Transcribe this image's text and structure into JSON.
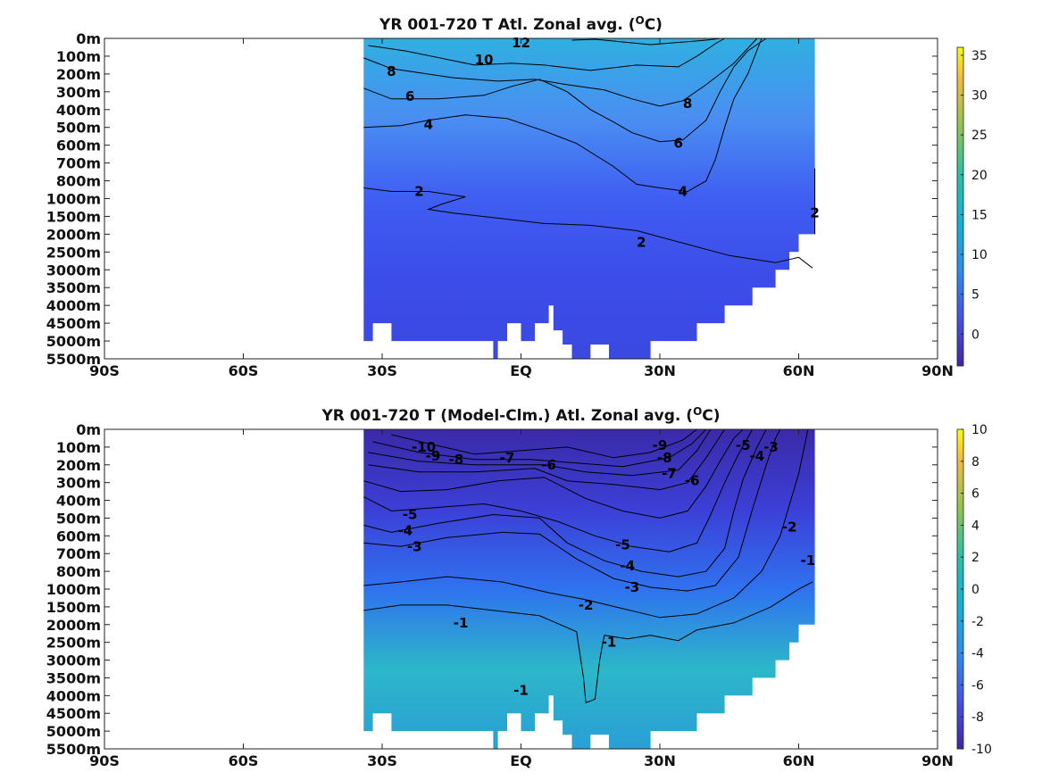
{
  "chart_data": [
    {
      "type": "heatmap",
      "title": "YR 001-720 T Atl. Zonal avg. (",
      "title_unit_sup": "O",
      "title_unit_tail": "C)",
      "x_ticks": [
        "90S",
        "60S",
        "30S",
        "EQ",
        "30N",
        "60N",
        "90N"
      ],
      "y_ticks": [
        "0m",
        "100m",
        "200m",
        "300m",
        "400m",
        "500m",
        "600m",
        "700m",
        "800m",
        "1000m",
        "1500m",
        "2000m",
        "2500m",
        "3000m",
        "3500m",
        "4000m",
        "4500m",
        "5000m",
        "5500m"
      ],
      "xlim": [
        -90,
        90
      ],
      "colorbar": {
        "range": [
          -4,
          36
        ],
        "ticks": [
          0,
          5,
          10,
          15,
          20,
          25,
          30,
          35
        ]
      },
      "colormap": "parula",
      "contours": [
        {
          "level": 12,
          "points": [
            [
              11,
              0.1
            ],
            [
              16,
              0.05
            ],
            [
              20,
              0.15
            ],
            [
              28,
              0.35
            ],
            [
              40,
              0.1
            ],
            [
              43,
              0
            ]
          ]
        },
        {
          "level": 10,
          "points": [
            [
              -33,
              0.4
            ],
            [
              -25,
              0.7
            ],
            [
              -10,
              1.5
            ],
            [
              -2,
              1.4
            ],
            [
              5,
              1.5
            ],
            [
              15,
              1.8
            ],
            [
              25,
              1.5
            ],
            [
              34,
              1.6
            ],
            [
              38,
              1
            ],
            [
              42,
              0.3
            ],
            [
              44,
              0
            ]
          ]
        },
        {
          "level": 8,
          "points": [
            [
              -34,
              1.1
            ],
            [
              -28,
              1.7
            ],
            [
              -15,
              2.2
            ],
            [
              -5,
              2.4
            ],
            [
              3,
              2.3
            ],
            [
              10,
              2.6
            ],
            [
              18,
              2.9
            ],
            [
              24,
              3.4
            ],
            [
              30,
              3.8
            ],
            [
              35,
              3.5
            ],
            [
              40,
              2.6
            ],
            [
              46,
              1.4
            ],
            [
              51,
              0
            ]
          ]
        },
        {
          "level": 6,
          "points": [
            [
              -34,
              2.8
            ],
            [
              -28,
              3.4
            ],
            [
              -18,
              3.4
            ],
            [
              -8,
              3.2
            ],
            [
              -2,
              2.7
            ],
            [
              4,
              2.3
            ],
            [
              10,
              3.0
            ],
            [
              15,
              4.0
            ],
            [
              20,
              4.7
            ],
            [
              24,
              5.3
            ],
            [
              30,
              5.8
            ],
            [
              35,
              5.7
            ],
            [
              40,
              4.6
            ],
            [
              43,
              3.0
            ],
            [
              46,
              1.6
            ],
            [
              49,
              0.7
            ],
            [
              53,
              0
            ]
          ]
        },
        {
          "level": 4,
          "points": [
            [
              -34,
              5.0
            ],
            [
              -26,
              4.9
            ],
            [
              -20,
              4.6
            ],
            [
              -12,
              4.3
            ],
            [
              -3,
              4.5
            ],
            [
              5,
              5.2
            ],
            [
              12,
              5.9
            ],
            [
              20,
              7.2
            ],
            [
              25,
              8.2
            ],
            [
              30,
              8.4
            ],
            [
              36,
              8.6
            ],
            [
              40,
              8.0
            ],
            [
              42,
              6.8
            ],
            [
              44,
              5.0
            ],
            [
              46,
              3.4
            ],
            [
              49,
              2.0
            ],
            [
              52,
              0
            ]
          ]
        },
        {
          "level": 2,
          "points": [
            [
              -34,
              8.4
            ],
            [
              -28,
              8.6
            ],
            [
              -20,
              8.6
            ],
            [
              -12,
              8.9
            ],
            [
              -17,
              9.3
            ],
            [
              -20,
              9.6
            ],
            [
              -15,
              9.8
            ],
            [
              -5,
              10.1
            ],
            [
              5,
              10.4
            ],
            [
              15,
              10.5
            ],
            [
              25,
              10.8
            ],
            [
              35,
              11.5
            ],
            [
              45,
              12.2
            ],
            [
              55,
              12.6
            ],
            [
              60,
              12.3
            ],
            [
              63,
              12.9
            ]
          ]
        },
        {
          "level": 2,
          "points": [
            [
              63.5,
              7.3
            ],
            [
              63.5,
              11.0
            ]
          ]
        }
      ],
      "labels": [
        {
          "text": "12",
          "x": 0,
          "y": 0.25
        },
        {
          "text": "10",
          "x": -8,
          "y": 1.2
        },
        {
          "text": "8",
          "x": -28,
          "y": 1.85
        },
        {
          "text": "8",
          "x": 36,
          "y": 3.65
        },
        {
          "text": "6",
          "x": -24,
          "y": 3.25
        },
        {
          "text": "6",
          "x": 34,
          "y": 5.9
        },
        {
          "text": "4",
          "x": -20,
          "y": 4.85
        },
        {
          "text": "4",
          "x": 35,
          "y": 8.6
        },
        {
          "text": "2",
          "x": -22,
          "y": 8.6
        },
        {
          "text": "2",
          "x": 26,
          "y": 11.45
        },
        {
          "text": "2",
          "x": 63.5,
          "y": 9.8
        }
      ]
    },
    {
      "type": "heatmap",
      "title": "YR 001-720 T (Model-Clm.) Atl. Zonal avg. (",
      "title_unit_sup": "O",
      "title_unit_tail": "C)",
      "x_ticks": [
        "90S",
        "60S",
        "30S",
        "EQ",
        "30N",
        "60N",
        "90N"
      ],
      "y_ticks": [
        "0m",
        "100m",
        "200m",
        "300m",
        "400m",
        "500m",
        "600m",
        "700m",
        "800m",
        "1000m",
        "1500m",
        "2000m",
        "2500m",
        "3000m",
        "3500m",
        "4000m",
        "4500m",
        "5000m",
        "5500m"
      ],
      "xlim": [
        -90,
        90
      ],
      "colorbar": {
        "range": [
          -10,
          10
        ],
        "ticks": [
          -10,
          -8,
          -6,
          -4,
          -2,
          0,
          2,
          4,
          6,
          8,
          10
        ]
      },
      "colormap": "parula",
      "contours": [
        {
          "level": -10,
          "points": [
            [
              -28,
              0.3
            ],
            [
              -20,
              0.8
            ],
            [
              -10,
              1.4
            ],
            [
              0,
              1.2
            ],
            [
              10,
              1.0
            ],
            [
              20,
              1.6
            ],
            [
              28,
              1.3
            ],
            [
              35,
              0.6
            ],
            [
              38,
              0
            ]
          ]
        },
        {
          "level": -9,
          "points": [
            [
              -32,
              0.7
            ],
            [
              -22,
              1.3
            ],
            [
              -10,
              1.7
            ],
            [
              2,
              1.7
            ],
            [
              12,
              1.9
            ],
            [
              22,
              2.1
            ],
            [
              32,
              1.6
            ],
            [
              37,
              0.8
            ],
            [
              40,
              0
            ]
          ]
        },
        {
          "level": -8,
          "points": [
            [
              -33,
              1.3
            ],
            [
              -22,
              1.8
            ],
            [
              -10,
              2.0
            ],
            [
              5,
              2.0
            ],
            [
              14,
              2.4
            ],
            [
              24,
              2.6
            ],
            [
              34,
              2.3
            ],
            [
              38,
              1.2
            ],
            [
              41,
              0
            ]
          ]
        },
        {
          "level": -7,
          "points": [
            [
              -33,
              2.0
            ],
            [
              -22,
              2.4
            ],
            [
              -10,
              2.4
            ],
            [
              3,
              2.2
            ],
            [
              10,
              2.9
            ],
            [
              20,
              3.1
            ],
            [
              30,
              3.4
            ],
            [
              36,
              3.0
            ],
            [
              40,
              1.6
            ],
            [
              44,
              0
            ]
          ]
        },
        {
          "level": -6,
          "points": [
            [
              -34,
              2.9
            ],
            [
              -26,
              3.5
            ],
            [
              -16,
              3.4
            ],
            [
              -5,
              2.9
            ],
            [
              5,
              2.7
            ],
            [
              14,
              3.9
            ],
            [
              22,
              4.6
            ],
            [
              30,
              5.0
            ],
            [
              36,
              4.6
            ],
            [
              40,
              3.2
            ],
            [
              43,
              1.8
            ],
            [
              46,
              0.5
            ],
            [
              48,
              0
            ]
          ]
        },
        {
          "level": -5,
          "points": [
            [
              -34,
              3.8
            ],
            [
              -28,
              4.6
            ],
            [
              -18,
              4.4
            ],
            [
              -8,
              4.2
            ],
            [
              0,
              4.6
            ],
            [
              8,
              5.2
            ],
            [
              16,
              6.0
            ],
            [
              24,
              6.6
            ],
            [
              32,
              6.9
            ],
            [
              38,
              6.4
            ],
            [
              41,
              4.8
            ],
            [
              44,
              3.0
            ],
            [
              47,
              1.4
            ],
            [
              50,
              0
            ]
          ]
        },
        {
          "level": -4,
          "points": [
            [
              -34,
              5.4
            ],
            [
              -28,
              5.8
            ],
            [
              -18,
              5.3
            ],
            [
              -6,
              4.8
            ],
            [
              4,
              5.0
            ],
            [
              10,
              6.4
            ],
            [
              18,
              7.4
            ],
            [
              26,
              8.0
            ],
            [
              34,
              8.3
            ],
            [
              40,
              8.0
            ],
            [
              44,
              6.7
            ],
            [
              46,
              4.6
            ],
            [
              48,
              2.8
            ],
            [
              51,
              1.0
            ],
            [
              53,
              0
            ]
          ]
        },
        {
          "level": -3,
          "points": [
            [
              -34,
              6.4
            ],
            [
              -26,
              6.6
            ],
            [
              -16,
              6.1
            ],
            [
              -4,
              5.8
            ],
            [
              4,
              5.9
            ],
            [
              12,
              7.3
            ],
            [
              20,
              8.4
            ],
            [
              28,
              8.9
            ],
            [
              36,
              9.1
            ],
            [
              42,
              8.8
            ],
            [
              47,
              7.2
            ],
            [
              50,
              4.5
            ],
            [
              53,
              2.0
            ],
            [
              55,
              0.5
            ],
            [
              56,
              0
            ]
          ]
        },
        {
          "level": -2,
          "points": [
            [
              -34,
              8.8
            ],
            [
              -26,
              8.6
            ],
            [
              -16,
              8.3
            ],
            [
              -4,
              8.6
            ],
            [
              6,
              9.2
            ],
            [
              14,
              9.6
            ],
            [
              22,
              10.1
            ],
            [
              30,
              10.6
            ],
            [
              38,
              10.4
            ],
            [
              46,
              9.5
            ],
            [
              52,
              8.0
            ],
            [
              56,
              6.0
            ],
            [
              60,
              2.5
            ],
            [
              62,
              0
            ]
          ]
        },
        {
          "level": -1,
          "points": [
            [
              -34,
              10.2
            ],
            [
              -26,
              9.9
            ],
            [
              -16,
              9.9
            ],
            [
              -6,
              10.2
            ],
            [
              4,
              10.5
            ],
            [
              12,
              11.4
            ],
            [
              13.5,
              14.0
            ],
            [
              14,
              15.4
            ],
            [
              16,
              15.2
            ],
            [
              17,
              13.0
            ],
            [
              18,
              11.6
            ],
            [
              23,
              11.8
            ],
            [
              28,
              11.6
            ],
            [
              34,
              11.9
            ],
            [
              38,
              11.3
            ],
            [
              46,
              10.9
            ],
            [
              54,
              10.0
            ],
            [
              60,
              9.0
            ],
            [
              63,
              8.6
            ]
          ]
        }
      ],
      "labels": [
        {
          "text": "-10",
          "x": -21,
          "y": 1.0
        },
        {
          "text": "-9",
          "x": -19,
          "y": 1.5
        },
        {
          "text": "-8",
          "x": -14,
          "y": 1.7
        },
        {
          "text": "-7",
          "x": -3,
          "y": 1.6
        },
        {
          "text": "-6",
          "x": 6,
          "y": 2.0
        },
        {
          "text": "-9",
          "x": 30,
          "y": 0.9
        },
        {
          "text": "-8",
          "x": 31,
          "y": 1.6
        },
        {
          "text": "-7",
          "x": 32,
          "y": 2.5
        },
        {
          "text": "-6",
          "x": 37,
          "y": 2.9
        },
        {
          "text": "-5",
          "x": 48,
          "y": 0.9
        },
        {
          "text": "-4",
          "x": 51,
          "y": 1.5
        },
        {
          "text": "-3",
          "x": 54,
          "y": 1.0
        },
        {
          "text": "-5",
          "x": -24,
          "y": 4.8
        },
        {
          "text": "-4",
          "x": -25,
          "y": 5.7
        },
        {
          "text": "-3",
          "x": -23,
          "y": 6.6
        },
        {
          "text": "-5",
          "x": 22,
          "y": 6.5
        },
        {
          "text": "-4",
          "x": 23,
          "y": 7.7
        },
        {
          "text": "-3",
          "x": 24,
          "y": 8.9
        },
        {
          "text": "-2",
          "x": 14,
          "y": 9.9
        },
        {
          "text": "-2",
          "x": 58,
          "y": 5.5
        },
        {
          "text": "-1",
          "x": 62,
          "y": 7.4
        },
        {
          "text": "-1",
          "x": -13,
          "y": 10.9
        },
        {
          "text": "-1",
          "x": 19,
          "y": 12.0
        },
        {
          "text": "-1",
          "x": 0,
          "y": 14.7
        }
      ]
    }
  ]
}
